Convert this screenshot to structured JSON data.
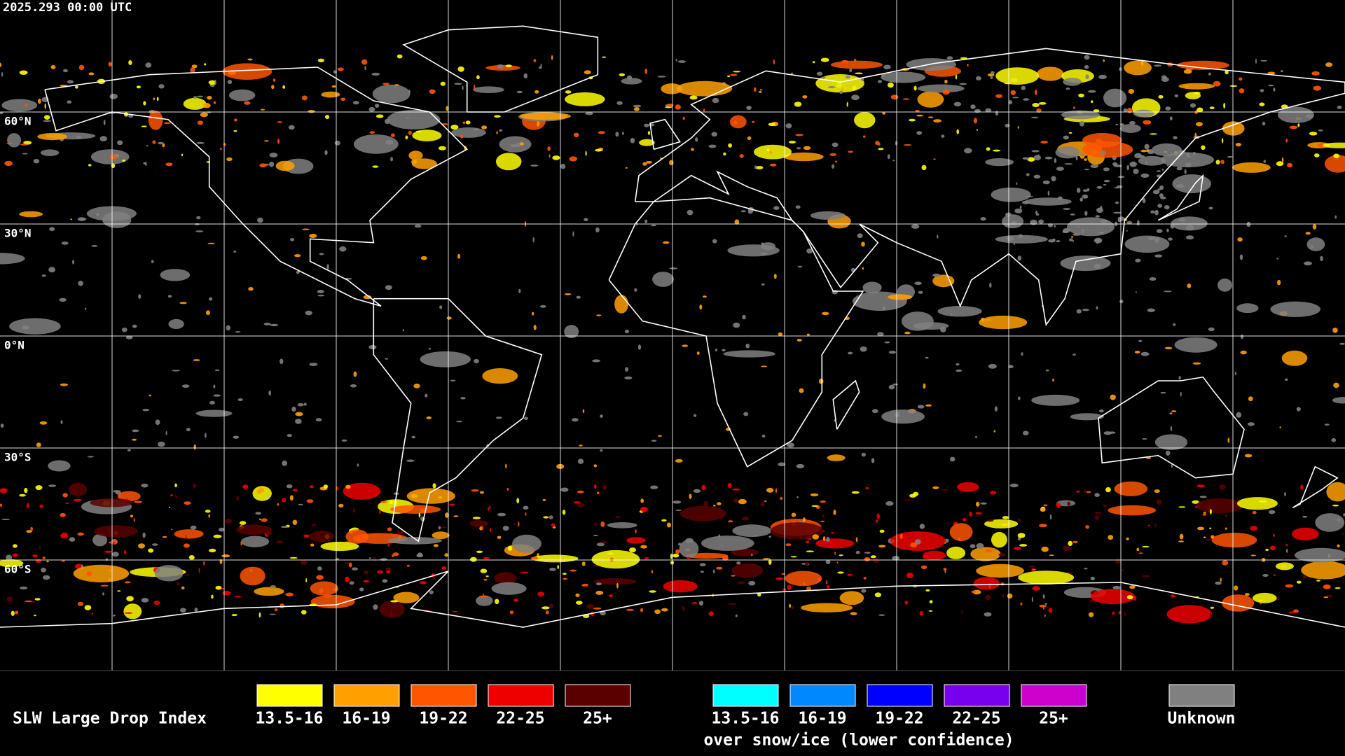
{
  "header": {
    "timestamp": "2025.293 00:00 UTC"
  },
  "map": {
    "lat_labels": [
      "60°N",
      "30°N",
      "0°N",
      "30°S",
      "60°S"
    ]
  },
  "legend": {
    "title": "SLW Large Drop Index",
    "items": [
      {
        "label": "13.5-16",
        "color": "#ffff00"
      },
      {
        "label": "16-19",
        "color": "#ffa000"
      },
      {
        "label": "19-22",
        "color": "#ff5500"
      },
      {
        "label": "22-25",
        "color": "#ee0000"
      },
      {
        "label": "25+",
        "color": "#5a0000"
      }
    ],
    "snow_items": [
      {
        "label": "13.5-16",
        "color": "#00ffff"
      },
      {
        "label": "16-19",
        "color": "#0088ff"
      },
      {
        "label": "19-22",
        "color": "#0000ff"
      },
      {
        "label": "22-25",
        "color": "#7700ee"
      },
      {
        "label": "25+",
        "color": "#cc00cc"
      }
    ],
    "snow_caption": "over snow/ice (lower confidence)",
    "unknown": {
      "label": "Unknown",
      "color": "#808080"
    }
  }
}
